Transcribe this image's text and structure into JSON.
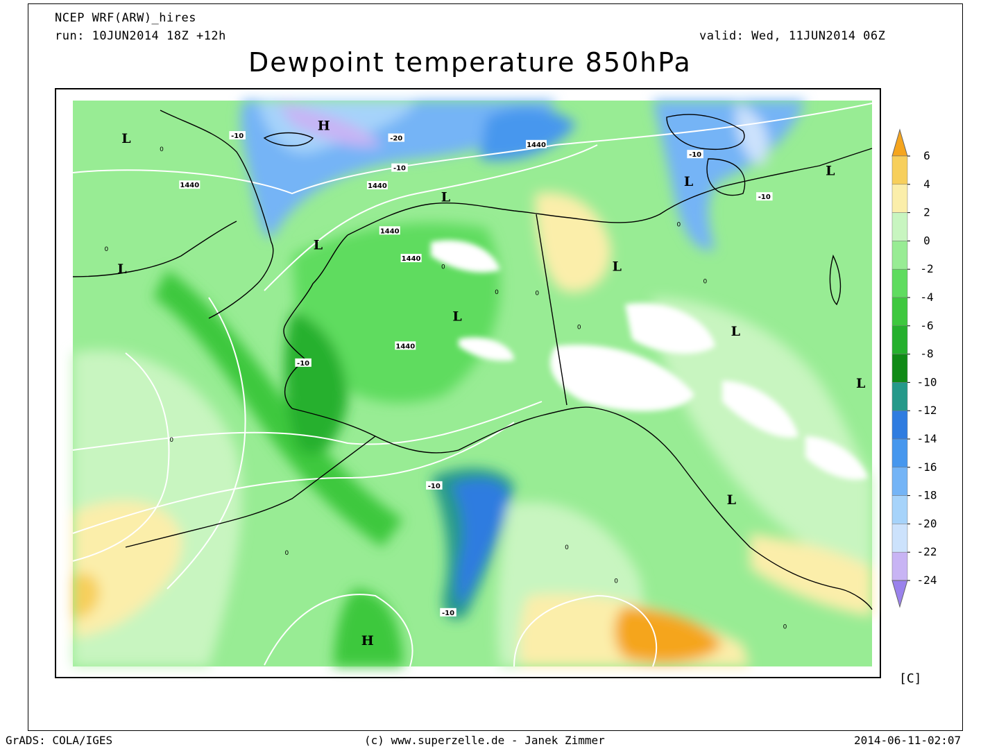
{
  "header": {
    "model": "NCEP WRF(ARW)_hires",
    "run": "run: 10JUN2014 18Z +12h",
    "valid": "valid: Wed, 11JUN2014 06Z"
  },
  "title": "Dewpoint temperature 850hPa",
  "footer": {
    "left": "GrADS: COLA/IGES",
    "center": "(c) www.superzelle.de - Janek Zimmer",
    "right": "2014-06-11-02:07"
  },
  "colorbar": {
    "unit": "[C]",
    "levels": [
      6,
      4,
      2,
      0,
      -2,
      -4,
      -6,
      -8,
      -10,
      -12,
      -14,
      -16,
      -18,
      -20,
      -22,
      -24
    ],
    "colors": [
      "#f5a51e",
      "#f7cf5c",
      "#fbeeaa",
      "#c8f5c0",
      "#98ec94",
      "#5fdc5f",
      "#3ec83e",
      "#25b02d",
      "#108a16",
      "#25998a",
      "#2f7ce0",
      "#4697ee",
      "#74b4f6",
      "#a6d3fa",
      "#cce2fc",
      "#c8b4f4",
      "#9a82ec"
    ],
    "labels": [
      "6",
      "4",
      "2",
      "0",
      "-2",
      "-4",
      "-6",
      "-8",
      "-10",
      "-12",
      "-14",
      "-16",
      "-18",
      "-20",
      "-22",
      "-24"
    ]
  },
  "map": {
    "pressure_centers": [
      {
        "type": "L",
        "fx": 0.085,
        "fy": 0.085
      },
      {
        "type": "H",
        "fx": 0.325,
        "fy": 0.063
      },
      {
        "type": "L",
        "fx": 0.473,
        "fy": 0.185
      },
      {
        "type": "L",
        "fx": 0.318,
        "fy": 0.266
      },
      {
        "type": "L",
        "fx": 0.08,
        "fy": 0.307
      },
      {
        "type": "L",
        "fx": 0.487,
        "fy": 0.388
      },
      {
        "type": "L",
        "fx": 0.681,
        "fy": 0.303
      },
      {
        "type": "L",
        "fx": 0.768,
        "fy": 0.158
      },
      {
        "type": "L",
        "fx": 0.94,
        "fy": 0.14
      },
      {
        "type": "L",
        "fx": 0.825,
        "fy": 0.413
      },
      {
        "type": "L",
        "fx": 0.977,
        "fy": 0.502
      },
      {
        "type": "L",
        "fx": 0.82,
        "fy": 0.7
      },
      {
        "type": "H",
        "fx": 0.378,
        "fy": 0.94
      }
    ],
    "contour_labels": [
      {
        "text": "-10",
        "fx": 0.22,
        "fy": 0.078
      },
      {
        "text": "-20",
        "fx": 0.413,
        "fy": 0.082
      },
      {
        "text": "1440",
        "fx": 0.583,
        "fy": 0.093
      },
      {
        "text": "-10",
        "fx": 0.417,
        "fy": 0.133
      },
      {
        "text": "1440",
        "fx": 0.39,
        "fy": 0.163
      },
      {
        "text": "1440",
        "fx": 0.162,
        "fy": 0.162
      },
      {
        "text": "-10",
        "fx": 0.776,
        "fy": 0.11
      },
      {
        "text": "-10",
        "fx": 0.86,
        "fy": 0.182
      },
      {
        "text": "1440",
        "fx": 0.405,
        "fy": 0.24
      },
      {
        "text": "1440",
        "fx": 0.431,
        "fy": 0.287
      },
      {
        "text": "1440",
        "fx": 0.424,
        "fy": 0.436
      },
      {
        "text": "-10",
        "fx": 0.3,
        "fy": 0.465
      },
      {
        "text": "-10",
        "fx": 0.459,
        "fy": 0.674
      },
      {
        "text": "-10",
        "fx": 0.476,
        "fy": 0.89
      }
    ],
    "zero_labels": [
      {
        "text": "0",
        "fx": 0.128,
        "fy": 0.105
      },
      {
        "text": "0",
        "fx": 0.061,
        "fy": 0.275
      },
      {
        "text": "0",
        "fx": 0.47,
        "fy": 0.305
      },
      {
        "text": "0",
        "fx": 0.535,
        "fy": 0.348
      },
      {
        "text": "0",
        "fx": 0.584,
        "fy": 0.35
      },
      {
        "text": "0",
        "fx": 0.635,
        "fy": 0.408
      },
      {
        "text": "0",
        "fx": 0.788,
        "fy": 0.33
      },
      {
        "text": "0",
        "fx": 0.14,
        "fy": 0.6
      },
      {
        "text": "0",
        "fx": 0.28,
        "fy": 0.792
      },
      {
        "text": "0",
        "fx": 0.62,
        "fy": 0.783
      },
      {
        "text": "0",
        "fx": 0.68,
        "fy": 0.84
      },
      {
        "text": "0",
        "fx": 0.885,
        "fy": 0.918
      },
      {
        "text": "0",
        "fx": 0.756,
        "fy": 0.233
      }
    ]
  }
}
